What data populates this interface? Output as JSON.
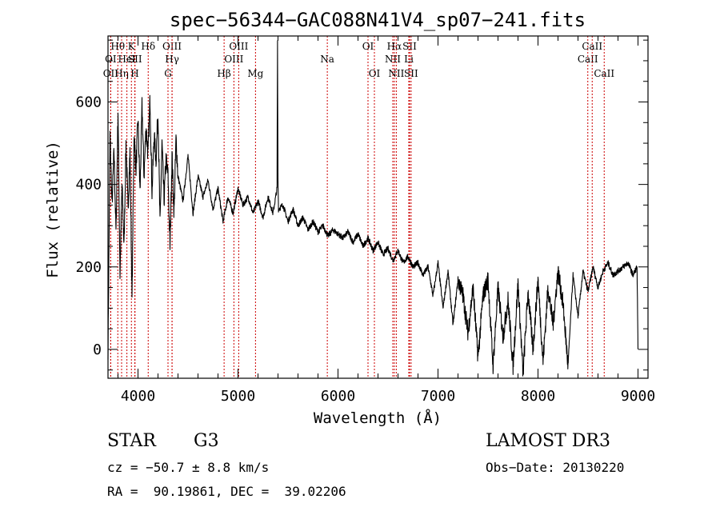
{
  "chart_data": {
    "type": "line",
    "title": "spec−56344−GAC088N41V4_sp07−241.fits",
    "xlabel": "Wavelength (Å)",
    "ylabel": "Flux (relative)",
    "xlim": [
      3700,
      9100
    ],
    "ylim": [
      -70,
      760
    ],
    "xticks": [
      4000,
      5000,
      6000,
      7000,
      8000,
      9000
    ],
    "yticks": [
      0,
      200,
      400,
      600
    ],
    "xminor_step": 200,
    "yminor_step": 50,
    "grid": false,
    "line_color": "#000000",
    "marker_color": "#cc0000",
    "spectrum": {
      "x": [
        3700,
        3720,
        3740,
        3760,
        3780,
        3800,
        3820,
        3840,
        3860,
        3880,
        3900,
        3920,
        3940,
        3960,
        3980,
        4000,
        4020,
        4040,
        4060,
        4080,
        4100,
        4120,
        4140,
        4160,
        4180,
        4200,
        4220,
        4240,
        4260,
        4280,
        4300,
        4320,
        4340,
        4360,
        4380,
        4400,
        4450,
        4500,
        4550,
        4600,
        4650,
        4700,
        4750,
        4800,
        4850,
        4900,
        4950,
        5000,
        5050,
        5100,
        5150,
        5200,
        5250,
        5300,
        5350,
        5390,
        5395,
        5400,
        5405,
        5450,
        5500,
        5550,
        5600,
        5650,
        5700,
        5750,
        5800,
        5850,
        5900,
        5950,
        6000,
        6050,
        6100,
        6150,
        6200,
        6250,
        6300,
        6350,
        6400,
        6450,
        6500,
        6550,
        6600,
        6650,
        6700,
        6750,
        6800,
        6850,
        6900,
        6950,
        7000,
        7050,
        7100,
        7150,
        7200,
        7250,
        7300,
        7350,
        7400,
        7450,
        7500,
        7550,
        7600,
        7650,
        7700,
        7750,
        7800,
        7850,
        7900,
        7950,
        8000,
        8050,
        8100,
        8150,
        8200,
        8250,
        8300,
        8350,
        8400,
        8450,
        8500,
        8550,
        8600,
        8650,
        8700,
        8750,
        8800,
        8850,
        8900,
        8950,
        8990,
        9000
      ],
      "flux": [
        0,
        520,
        350,
        480,
        280,
        580,
        180,
        400,
        250,
        500,
        340,
        480,
        120,
        520,
        440,
        560,
        380,
        590,
        420,
        540,
        470,
        610,
        380,
        520,
        460,
        580,
        300,
        500,
        360,
        460,
        420,
        250,
        470,
        330,
        510,
        420,
        360,
        470,
        330,
        420,
        370,
        410,
        340,
        390,
        310,
        370,
        330,
        390,
        350,
        370,
        330,
        360,
        320,
        370,
        330,
        390,
        750,
        410,
        340,
        350,
        310,
        340,
        300,
        320,
        290,
        310,
        285,
        300,
        275,
        290,
        280,
        270,
        285,
        260,
        280,
        250,
        270,
        240,
        260,
        230,
        245,
        215,
        240,
        210,
        225,
        200,
        210,
        180,
        200,
        130,
        210,
        100,
        190,
        60,
        170,
        130,
        40,
        150,
        -20,
        130,
        170,
        -40,
        150,
        30,
        120,
        -40,
        160,
        -60,
        140,
        0,
        170,
        -30,
        150,
        60,
        190,
        110,
        -40,
        180,
        80,
        190,
        140,
        200,
        150,
        190,
        210,
        180,
        190,
        200,
        210,
        180,
        200,
        0
      ],
      "fill_step": 2
    },
    "lines": [
      {
        "name": "OII",
        "wave": 3727,
        "row": 3
      },
      {
        "name": "OI",
        "wave": 3727,
        "row": 2
      },
      {
        "name": "Hθ",
        "wave": 3798,
        "row": 1
      },
      {
        "name": "Hη",
        "wave": 3836,
        "row": 3
      },
      {
        "name": "HeI",
        "wave": 3889,
        "row": 2
      },
      {
        "name": "K",
        "wave": 3934,
        "row": 1
      },
      {
        "name": "SII",
        "wave": 3970,
        "row": 2
      },
      {
        "name": "H",
        "wave": 3968,
        "row": 3
      },
      {
        "name": "Hδ",
        "wave": 4102,
        "row": 1
      },
      {
        "name": "G",
        "wave": 4300,
        "row": 3
      },
      {
        "name": "OIII",
        "wave": 4340,
        "row": 1
      },
      {
        "name": "Hγ",
        "wave": 4341,
        "row": 2
      },
      {
        "name": "Hβ",
        "wave": 4861,
        "row": 3
      },
      {
        "name": "OIII",
        "wave": 4959,
        "row": 2
      },
      {
        "name": "OIII",
        "wave": 5007,
        "row": 1
      },
      {
        "name": "Mg",
        "wave": 5175,
        "row": 3
      },
      {
        "name": "Na",
        "wave": 5893,
        "row": 2
      },
      {
        "name": "OI",
        "wave": 6300,
        "row": 1
      },
      {
        "name": "OI",
        "wave": 6364,
        "row": 3
      },
      {
        "name": "NII",
        "wave": 6548,
        "row": 2
      },
      {
        "name": "Hα",
        "wave": 6563,
        "row": 1
      },
      {
        "name": "NII",
        "wave": 6583,
        "row": 3
      },
      {
        "name": "SII",
        "wave": 6716,
        "row": 1
      },
      {
        "name": "Li",
        "wave": 6708,
        "row": 2
      },
      {
        "name": "SII",
        "wave": 6731,
        "row": 3
      },
      {
        "name": "CaII",
        "wave": 8498,
        "row": 2
      },
      {
        "name": "CaII",
        "wave": 8542,
        "row": 1
      },
      {
        "name": "CaII",
        "wave": 8662,
        "row": 3
      }
    ]
  },
  "info": {
    "object_class": "STAR",
    "subclass": "G3",
    "survey": "LAMOST DR3",
    "redshift_line": "cz = −50.7 ± 8.8 km/s",
    "obs_date": "Obs−Date: 20130220",
    "coords": "RA =  90.19861, DEC =  39.02206"
  }
}
